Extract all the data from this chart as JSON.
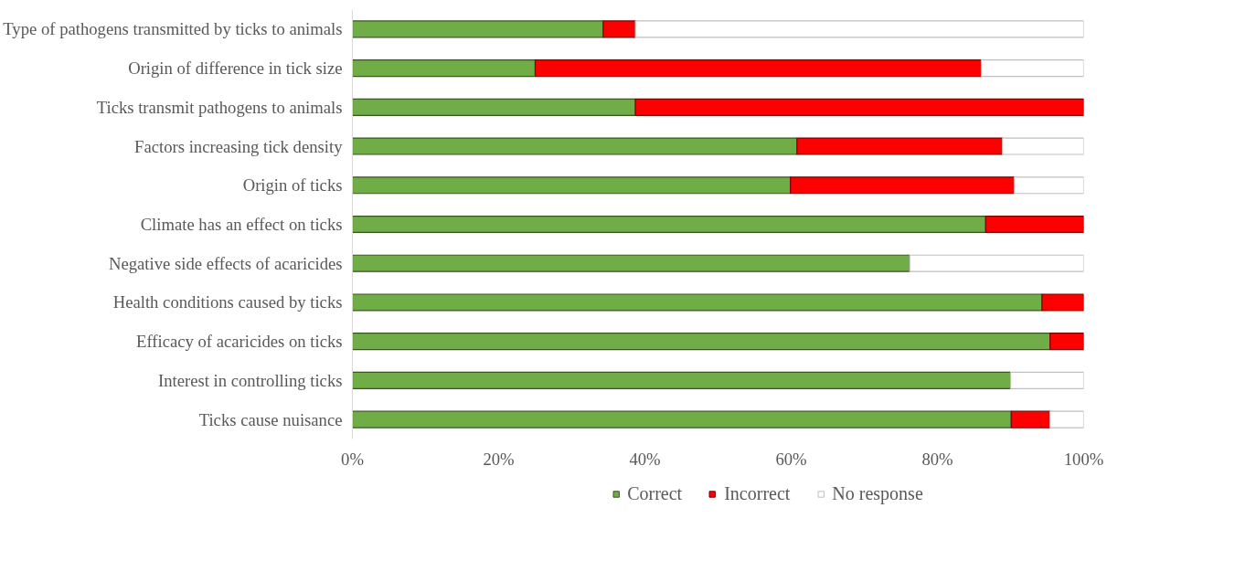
{
  "chart_data": {
    "type": "bar",
    "orientation": "horizontal",
    "stacked": true,
    "categories": [
      "Type of pathogens transmitted by ticks to animals",
      "Origin of difference in tick size",
      "Ticks transmit pathogens to animals",
      "Factors increasing tick density",
      "Origin of ticks",
      "Climate has an effect on ticks",
      "Negative side effects of acaricides",
      "Health conditions caused by ticks",
      "Efficacy of acaricides on ticks",
      "Interest in controlling ticks",
      "Ticks cause nuisance"
    ],
    "series": [
      {
        "name": "Correct",
        "color": "#70ad47",
        "values": [
          34.3,
          25.0,
          38.7,
          60.8,
          59.9,
          86.6,
          76.2,
          94.3,
          95.4,
          90.0,
          90.1
        ]
      },
      {
        "name": "Incorrect",
        "color": "#ff0000",
        "values": [
          4.4,
          61.0,
          61.3,
          28.1,
          30.6,
          13.4,
          0,
          5.7,
          4.6,
          0,
          5.3
        ]
      },
      {
        "name": "No response",
        "color": "#ffffff",
        "values": [
          61.3,
          14.0,
          0,
          11.1,
          9.5,
          0,
          23.8,
          0,
          0,
          10.0,
          4.6
        ]
      }
    ],
    "xlim": [
      0,
      100
    ],
    "xticks": [
      {
        "value": 0,
        "label": "0%"
      },
      {
        "value": 20,
        "label": "20%"
      },
      {
        "value": 40,
        "label": "40%"
      },
      {
        "value": 60,
        "label": "60%"
      },
      {
        "value": 80,
        "label": "80%"
      },
      {
        "value": 100,
        "label": "100%"
      }
    ],
    "grid": false,
    "legend": "bottom"
  }
}
